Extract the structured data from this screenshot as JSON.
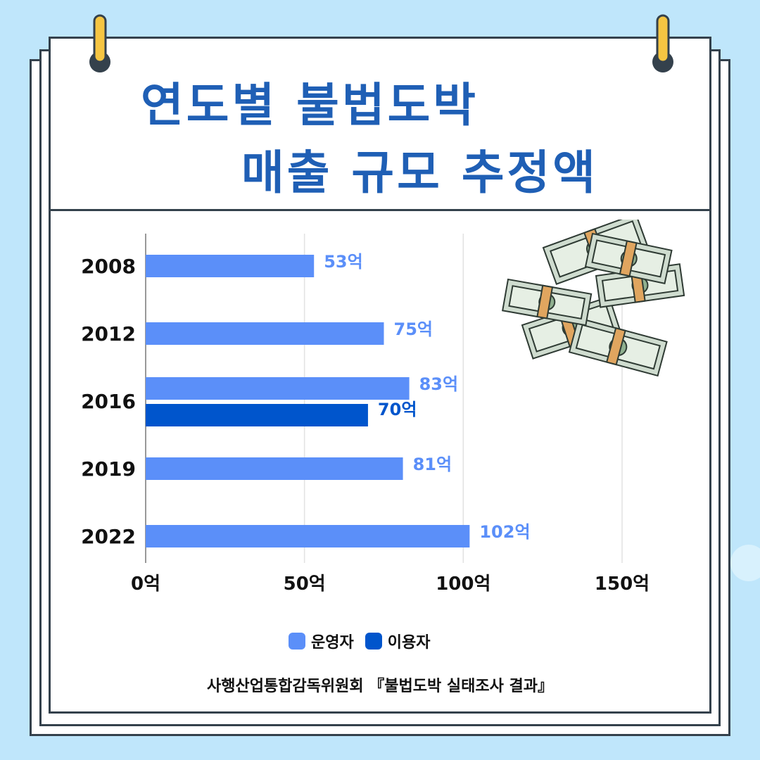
{
  "title": {
    "line1": "연도별 불법도박",
    "line2": "매출 규모 추정액"
  },
  "colors": {
    "background": "#bfe6fb",
    "title": "#1f5fb5",
    "operator": "#5b8ff9",
    "user": "#0055cc",
    "paper_border": "#34414c",
    "ring": "#f5c542"
  },
  "icons": {
    "illustration": "money-stack-icon",
    "rings": "binder-ring-icon"
  },
  "chart_data": {
    "type": "bar",
    "orientation": "horizontal",
    "categories": [
      "2008",
      "2012",
      "2016",
      "2019",
      "2022"
    ],
    "series": [
      {
        "name": "운영자",
        "color": "#5b8ff9",
        "values": [
          53,
          75,
          83,
          81,
          102
        ],
        "labels": [
          "53억",
          "75억",
          "83억",
          "81억",
          "102억"
        ]
      },
      {
        "name": "이용자",
        "color": "#0055cc",
        "values": [
          null,
          null,
          70,
          null,
          null
        ],
        "labels": [
          "",
          "",
          "70억",
          "",
          ""
        ]
      }
    ],
    "xlim": [
      0,
      150
    ],
    "xticks": [
      0,
      50,
      100,
      150
    ],
    "xtick_labels": [
      "0억",
      "50억",
      "100억",
      "150억"
    ],
    "grid": "vertical",
    "legend": "bottom"
  },
  "source": "사행산업통합감독위원회 『불법도박 실태조사 결과』"
}
